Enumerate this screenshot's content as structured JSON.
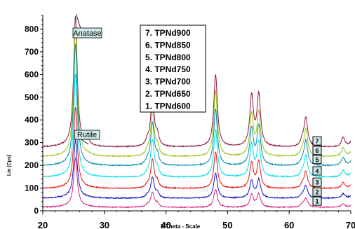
{
  "chart_data": {
    "type": "line",
    "ylabel": "Lin (Cps)",
    "xlabel": "2-Theta - Scale",
    "xlim": [
      20,
      70
    ],
    "ylim": [
      0,
      860
    ],
    "xticks": [
      20,
      30,
      40,
      50,
      60,
      70
    ],
    "yticks": [
      0,
      100,
      200,
      300,
      400,
      500,
      600,
      700,
      800
    ],
    "grid": false,
    "legend": {
      "placement": "top-center",
      "entries": [
        "7. TPNd900",
        "6. TPNd850",
        "5. TPNd800",
        "4. TPNd750",
        "3. TPNd700",
        "2. TPNd650",
        "1. TPNd600"
      ]
    },
    "annotations": [
      {
        "text": "Anatase",
        "points_to_x": 25.3
      },
      {
        "text": "Rutile",
        "points_to_x": 27.4
      }
    ],
    "peaks": [
      {
        "x": 25.3,
        "fwhm": 0.35
      },
      {
        "x": 27.4,
        "fwhm": 0.3
      },
      {
        "x": 36.95,
        "fwhm": 0.3
      },
      {
        "x": 37.8,
        "fwhm": 0.35
      },
      {
        "x": 38.6,
        "fwhm": 0.3
      },
      {
        "x": 48.05,
        "fwhm": 0.35
      },
      {
        "x": 53.9,
        "fwhm": 0.35
      },
      {
        "x": 55.06,
        "fwhm": 0.35
      },
      {
        "x": 62.1,
        "fwhm": 0.3
      },
      {
        "x": 62.7,
        "fwhm": 0.35
      },
      {
        "x": 68.76,
        "fwhm": 0.35
      },
      {
        "x": 70.3,
        "fwhm": 0.35
      }
    ],
    "series": [
      {
        "name": "1. TPNd600",
        "tag": "1",
        "color": "#d6287e",
        "baseline": 15,
        "peak_heights": [
          210,
          0,
          8,
          65,
          15,
          80,
          55,
          58,
          10,
          40,
          15,
          15
        ]
      },
      {
        "name": "2. TPNd650",
        "tag": "2",
        "color": "#1a1ac8",
        "baseline": 55,
        "peak_heights": [
          250,
          0,
          10,
          90,
          20,
          110,
          75,
          80,
          12,
          55,
          20,
          20
        ]
      },
      {
        "name": "3. TPNd700",
        "tag": "3",
        "color": "#e81818",
        "baseline": 98,
        "peak_heights": [
          350,
          0,
          12,
          125,
          25,
          160,
          110,
          115,
          14,
          75,
          25,
          25
        ]
      },
      {
        "name": "4. TPNd750",
        "tag": "4",
        "color": "#00e0e8",
        "baseline": 148,
        "peak_heights": [
          450,
          0,
          15,
          160,
          32,
          210,
          140,
          150,
          16,
          95,
          30,
          30
        ]
      },
      {
        "name": "5. TPNd800",
        "tag": "5",
        "color": "#0a8fa8",
        "baseline": 198,
        "peak_heights": [
          530,
          0,
          18,
          185,
          38,
          250,
          160,
          170,
          18,
          110,
          35,
          35
        ]
      },
      {
        "name": "6. TPNd850",
        "tag": "6",
        "color": "#9ac819",
        "baseline": 238,
        "peak_heights": [
          560,
          5,
          20,
          195,
          40,
          290,
          180,
          190,
          20,
          120,
          38,
          38
        ]
      },
      {
        "name": "7. TPNd900",
        "tag": "7",
        "color": "#8c1a3a",
        "baseline": 280,
        "peak_heights": [
          570,
          18,
          22,
          215,
          45,
          320,
          220,
          225,
          22,
          130,
          42,
          42
        ]
      }
    ]
  }
}
